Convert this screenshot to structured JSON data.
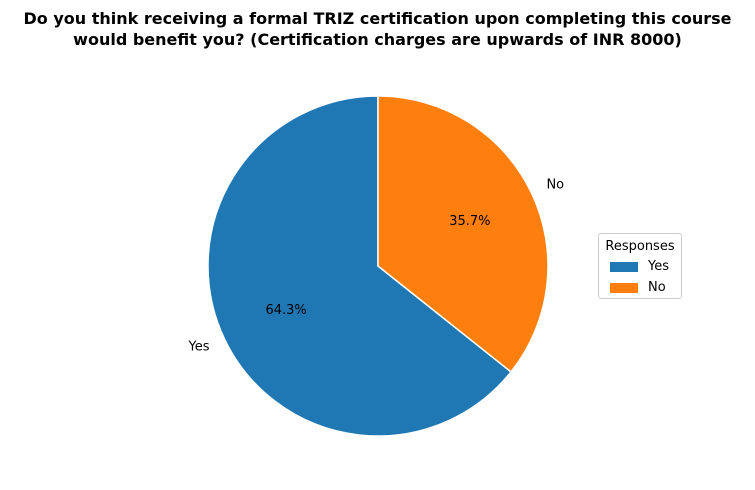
{
  "chart_data": {
    "type": "pie",
    "title_lines": [
      "Do you think receiving a formal TRIZ certification upon completing this course",
      "would benefit you? (Certification charges are upwards of INR 8000)"
    ],
    "categories": [
      "Yes",
      "No"
    ],
    "values": [
      64.3,
      35.7
    ],
    "value_labels": [
      "64.3%",
      "35.7%"
    ],
    "colors": [
      "#1f77b4",
      "#ff7f0e"
    ],
    "legend": {
      "title": "Responses",
      "entries": [
        "Yes",
        "No"
      ],
      "placement": "right"
    }
  }
}
